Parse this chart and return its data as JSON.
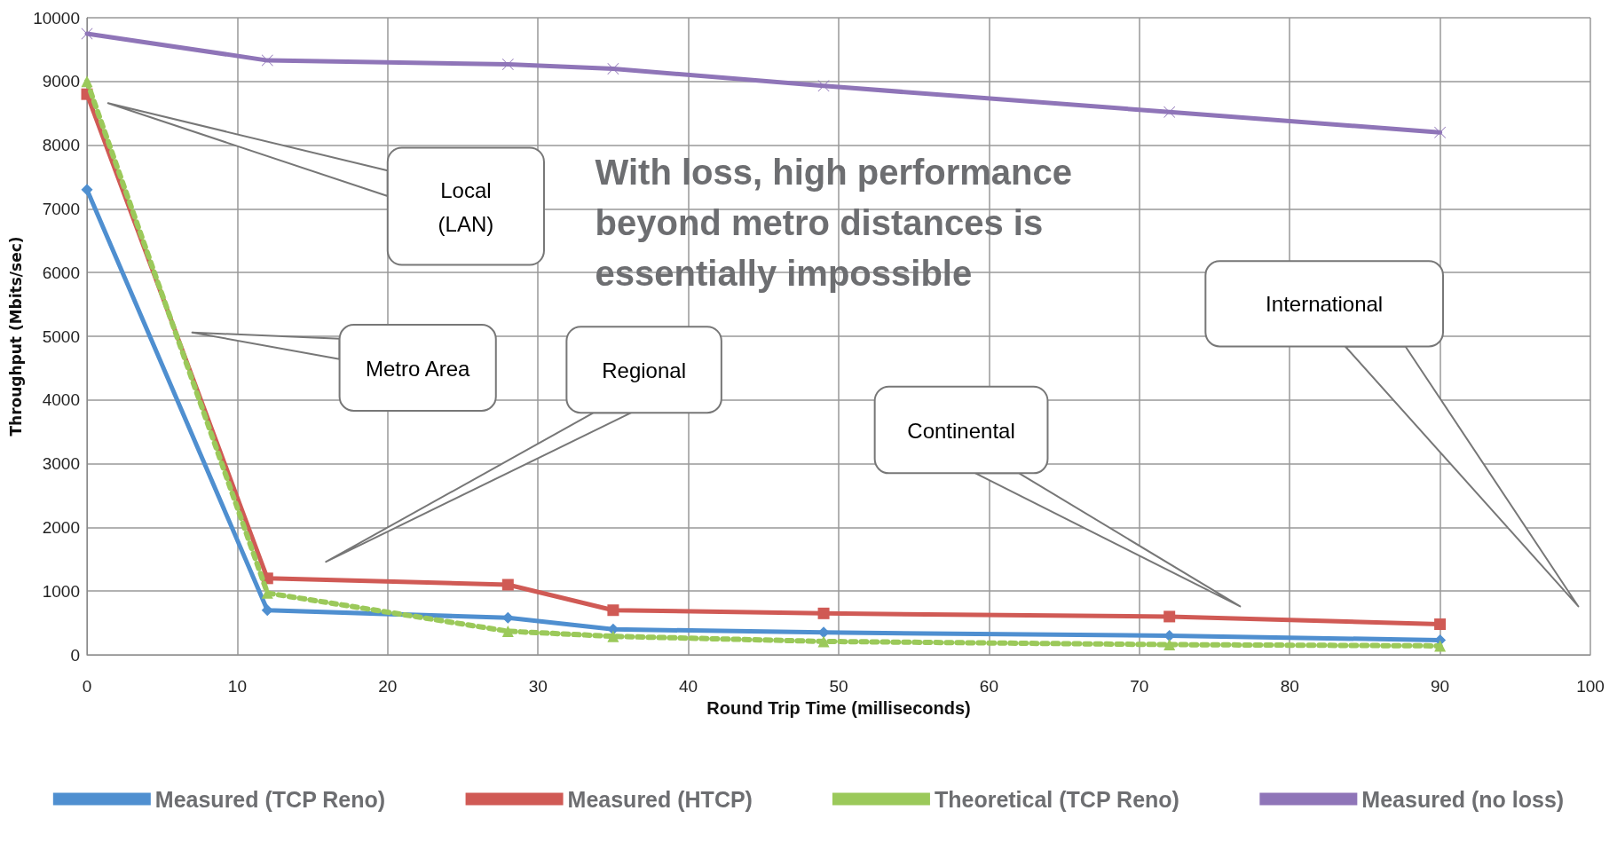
{
  "chart_data": {
    "type": "line",
    "xlabel": "Round Trip Time (milliseconds)",
    "ylabel": "Throughput (Mbits/sec)",
    "x": [
      0,
      12,
      28,
      35,
      49,
      72,
      90
    ],
    "series": [
      {
        "name": "Measured (TCP Reno)",
        "color": "#4f8fd0",
        "marker": "diamond",
        "line_style": "solid",
        "values": [
          7300,
          700,
          580,
          400,
          350,
          300,
          230
        ]
      },
      {
        "name": "Measured (HTCP)",
        "color": "#d05a55",
        "marker": "square",
        "line_style": "solid",
        "values": [
          8800,
          1200,
          1100,
          700,
          650,
          600,
          480
        ]
      },
      {
        "name": "Theoretical (TCP Reno)",
        "color": "#9bc95a",
        "marker": "triangle",
        "line_style": "dotted",
        "values": [
          9000,
          970,
          370,
          290,
          210,
          160,
          140
        ]
      },
      {
        "name": "Measured (no loss)",
        "color": "#8f75b8",
        "marker": "cross",
        "line_style": "solid",
        "values": [
          9750,
          9330,
          9270,
          9200,
          8930,
          8520,
          8200
        ]
      }
    ],
    "xlim": [
      0,
      100
    ],
    "xticks": [
      0,
      10,
      20,
      30,
      40,
      50,
      60,
      70,
      80,
      90,
      100
    ],
    "ylim": [
      0,
      10000
    ],
    "yticks": [
      0,
      1000,
      2000,
      3000,
      4000,
      5000,
      6000,
      7000,
      8000,
      9000,
      10000
    ],
    "grid": true,
    "legend": "bottom",
    "annotations": [
      "Local\n(LAN)",
      "Metro Area",
      "Regional",
      "Continental",
      "International",
      "With loss, high performance beyond metro distances is essentially impossible"
    ]
  }
}
